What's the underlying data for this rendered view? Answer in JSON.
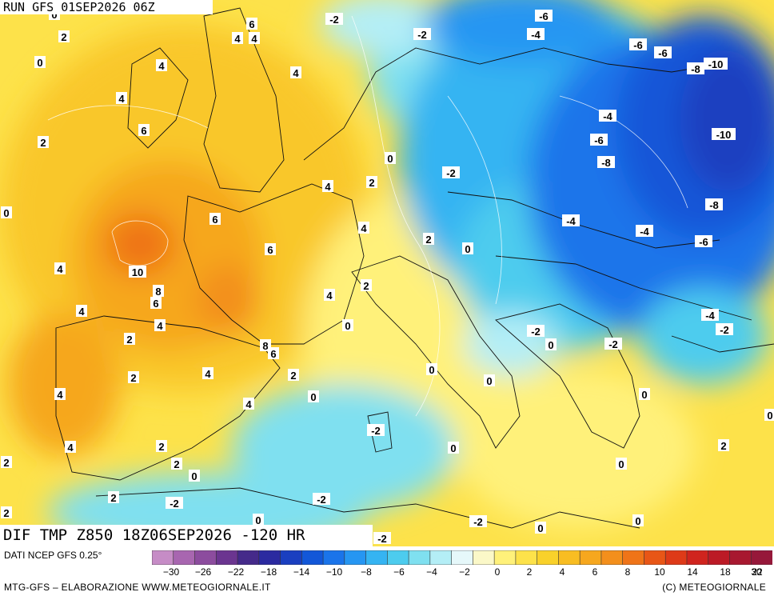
{
  "header": {
    "run_label": "RUN GFS 01SEP2026 06Z"
  },
  "map": {
    "title": "DIF TMP Z850 18Z06SEP2026 -120 HR",
    "field": "temperature anomaly at 850 hPa",
    "palette_notes": "orange/yellow = positive anomaly, blue = negative anomaly",
    "value_labels": [
      {
        "text": "0",
        "loc": "north atlantic top"
      },
      {
        "text": "2",
        "loc": "atlantic northwest"
      },
      {
        "text": "0",
        "loc": "atlantic west"
      },
      {
        "text": "6",
        "loc": "north scotland"
      },
      {
        "text": "4",
        "loc": "scotland"
      },
      {
        "text": "4",
        "loc": "scotland east"
      },
      {
        "text": "4",
        "loc": "ireland north"
      },
      {
        "text": "4",
        "loc": "north sea"
      },
      {
        "text": "4",
        "loc": "ireland west"
      },
      {
        "text": "6",
        "loc": "ireland south"
      },
      {
        "text": "2",
        "loc": "atlantic"
      },
      {
        "text": "0",
        "loc": "atlantic far west"
      },
      {
        "text": "10",
        "loc": "bay of biscay"
      },
      {
        "text": "4",
        "loc": "atlantic biscay west"
      },
      {
        "text": "6",
        "loc": "brittany"
      },
      {
        "text": "4",
        "loc": "belgium"
      },
      {
        "text": "2",
        "loc": "germany west"
      },
      {
        "text": "0",
        "loc": "germany"
      },
      {
        "text": "-2",
        "loc": "czechia"
      },
      {
        "text": "-2",
        "loc": "denmark"
      },
      {
        "text": "-2",
        "loc": "baltic"
      },
      {
        "text": "-6",
        "loc": "finland"
      },
      {
        "text": "-4",
        "loc": "baltic states"
      },
      {
        "text": "-6",
        "loc": "russia north"
      },
      {
        "text": "-6",
        "loc": "russia"
      },
      {
        "text": "-8",
        "loc": "russia east"
      },
      {
        "text": "-10",
        "loc": "russia far east"
      },
      {
        "text": "-4",
        "loc": "belarus"
      },
      {
        "text": "-6",
        "loc": "belarus south"
      },
      {
        "text": "-8",
        "loc": "ukraine north"
      },
      {
        "text": "-10",
        "loc": "russia south"
      },
      {
        "text": "-8",
        "loc": "ukraine east"
      },
      {
        "text": "-4",
        "loc": "slovakia"
      },
      {
        "text": "-4",
        "loc": "romania north"
      },
      {
        "text": "-6",
        "loc": "moldova"
      },
      {
        "text": "4",
        "loc": "france east"
      },
      {
        "text": "6",
        "loc": "france central"
      },
      {
        "text": "2",
        "loc": "switzerland"
      },
      {
        "text": "0",
        "loc": "austria"
      },
      {
        "text": "8",
        "loc": "france south"
      },
      {
        "text": "6",
        "loc": "france southwest"
      },
      {
        "text": "4",
        "loc": "bay of biscay south"
      },
      {
        "text": "4",
        "loc": "france southeast"
      },
      {
        "text": "2",
        "loc": "alps"
      },
      {
        "text": "0",
        "loc": "gulf of lion"
      },
      {
        "text": "2",
        "loc": "spain north"
      },
      {
        "text": "4",
        "loc": "galicia"
      },
      {
        "text": "8",
        "loc": "pyrenees"
      },
      {
        "text": "6",
        "loc": "pyrenees east"
      },
      {
        "text": "-2",
        "loc": "croatia"
      },
      {
        "text": "0",
        "loc": "bosnia"
      },
      {
        "text": "-2",
        "loc": "serbia"
      },
      {
        "text": "-4",
        "loc": "black sea west"
      },
      {
        "text": "-2",
        "loc": "black sea"
      },
      {
        "text": "0",
        "loc": "italy north"
      },
      {
        "text": "0",
        "loc": "italy central"
      },
      {
        "text": "0",
        "loc": "greece north"
      },
      {
        "text": "0",
        "loc": "aegean east"
      },
      {
        "text": "2",
        "loc": "spain central"
      },
      {
        "text": "4",
        "loc": "spain east"
      },
      {
        "text": "2",
        "loc": "catalonia"
      },
      {
        "text": "0",
        "loc": "balearic north"
      },
      {
        "text": "4",
        "loc": "portugal"
      },
      {
        "text": "4",
        "loc": "spain south"
      },
      {
        "text": "4",
        "loc": "balearic"
      },
      {
        "text": "-2",
        "loc": "sardinia"
      },
      {
        "text": "0",
        "loc": "tyrrhenian"
      },
      {
        "text": "2",
        "loc": "andalusia"
      },
      {
        "text": "2",
        "loc": "murcia"
      },
      {
        "text": "0",
        "loc": "alboran"
      },
      {
        "text": "2",
        "loc": "ionian"
      },
      {
        "text": "0",
        "loc": "crete north"
      },
      {
        "text": "2",
        "loc": "atlantic south"
      },
      {
        "text": "2",
        "loc": "morocco"
      },
      {
        "text": "-2",
        "loc": "algeria"
      },
      {
        "text": "-2",
        "loc": "tunisia"
      },
      {
        "text": "-2",
        "loc": "libya west"
      },
      {
        "text": "0",
        "loc": "libya"
      },
      {
        "text": "0",
        "loc": "egypt west"
      },
      {
        "text": "2",
        "loc": "atlantic southwest"
      },
      {
        "text": "0",
        "loc": "algeria south"
      },
      {
        "text": "-2",
        "loc": "tunisia south"
      }
    ]
  },
  "colorbar": {
    "data_source": "DATI NCEP GFS 0.25°",
    "tick_labels": [
      "-30",
      "-26",
      "-22",
      "-18",
      "-14",
      "-10",
      "-8",
      "-6",
      "-4",
      "-2",
      "0",
      "2",
      "4",
      "6",
      "8",
      "10",
      "14",
      "18",
      "22",
      "30"
    ],
    "colors": [
      "#c68cc6",
      "#a866b0",
      "#8c4c9e",
      "#6b3590",
      "#452a8a",
      "#2b2aa0",
      "#1a3fc0",
      "#1257d8",
      "#1a74ea",
      "#2696f2",
      "#35b4f2",
      "#4dccee",
      "#7fe0f0",
      "#b4eef6",
      "#e6f8fa",
      "#fbf8c8",
      "#fff17a",
      "#fde24a",
      "#f9d12a",
      "#f8bd22",
      "#f6a71e",
      "#f38f1c",
      "#ef7418",
      "#e85616",
      "#de3a18",
      "#d0241e",
      "#bc1a26",
      "#a81830",
      "#96183a"
    ]
  },
  "footer": {
    "credit_left": "MTG-GFS – ELABORAZIONE WWW.METEOGIORNALE.IT",
    "credit_right": "(C) METEOGIORNALE"
  }
}
